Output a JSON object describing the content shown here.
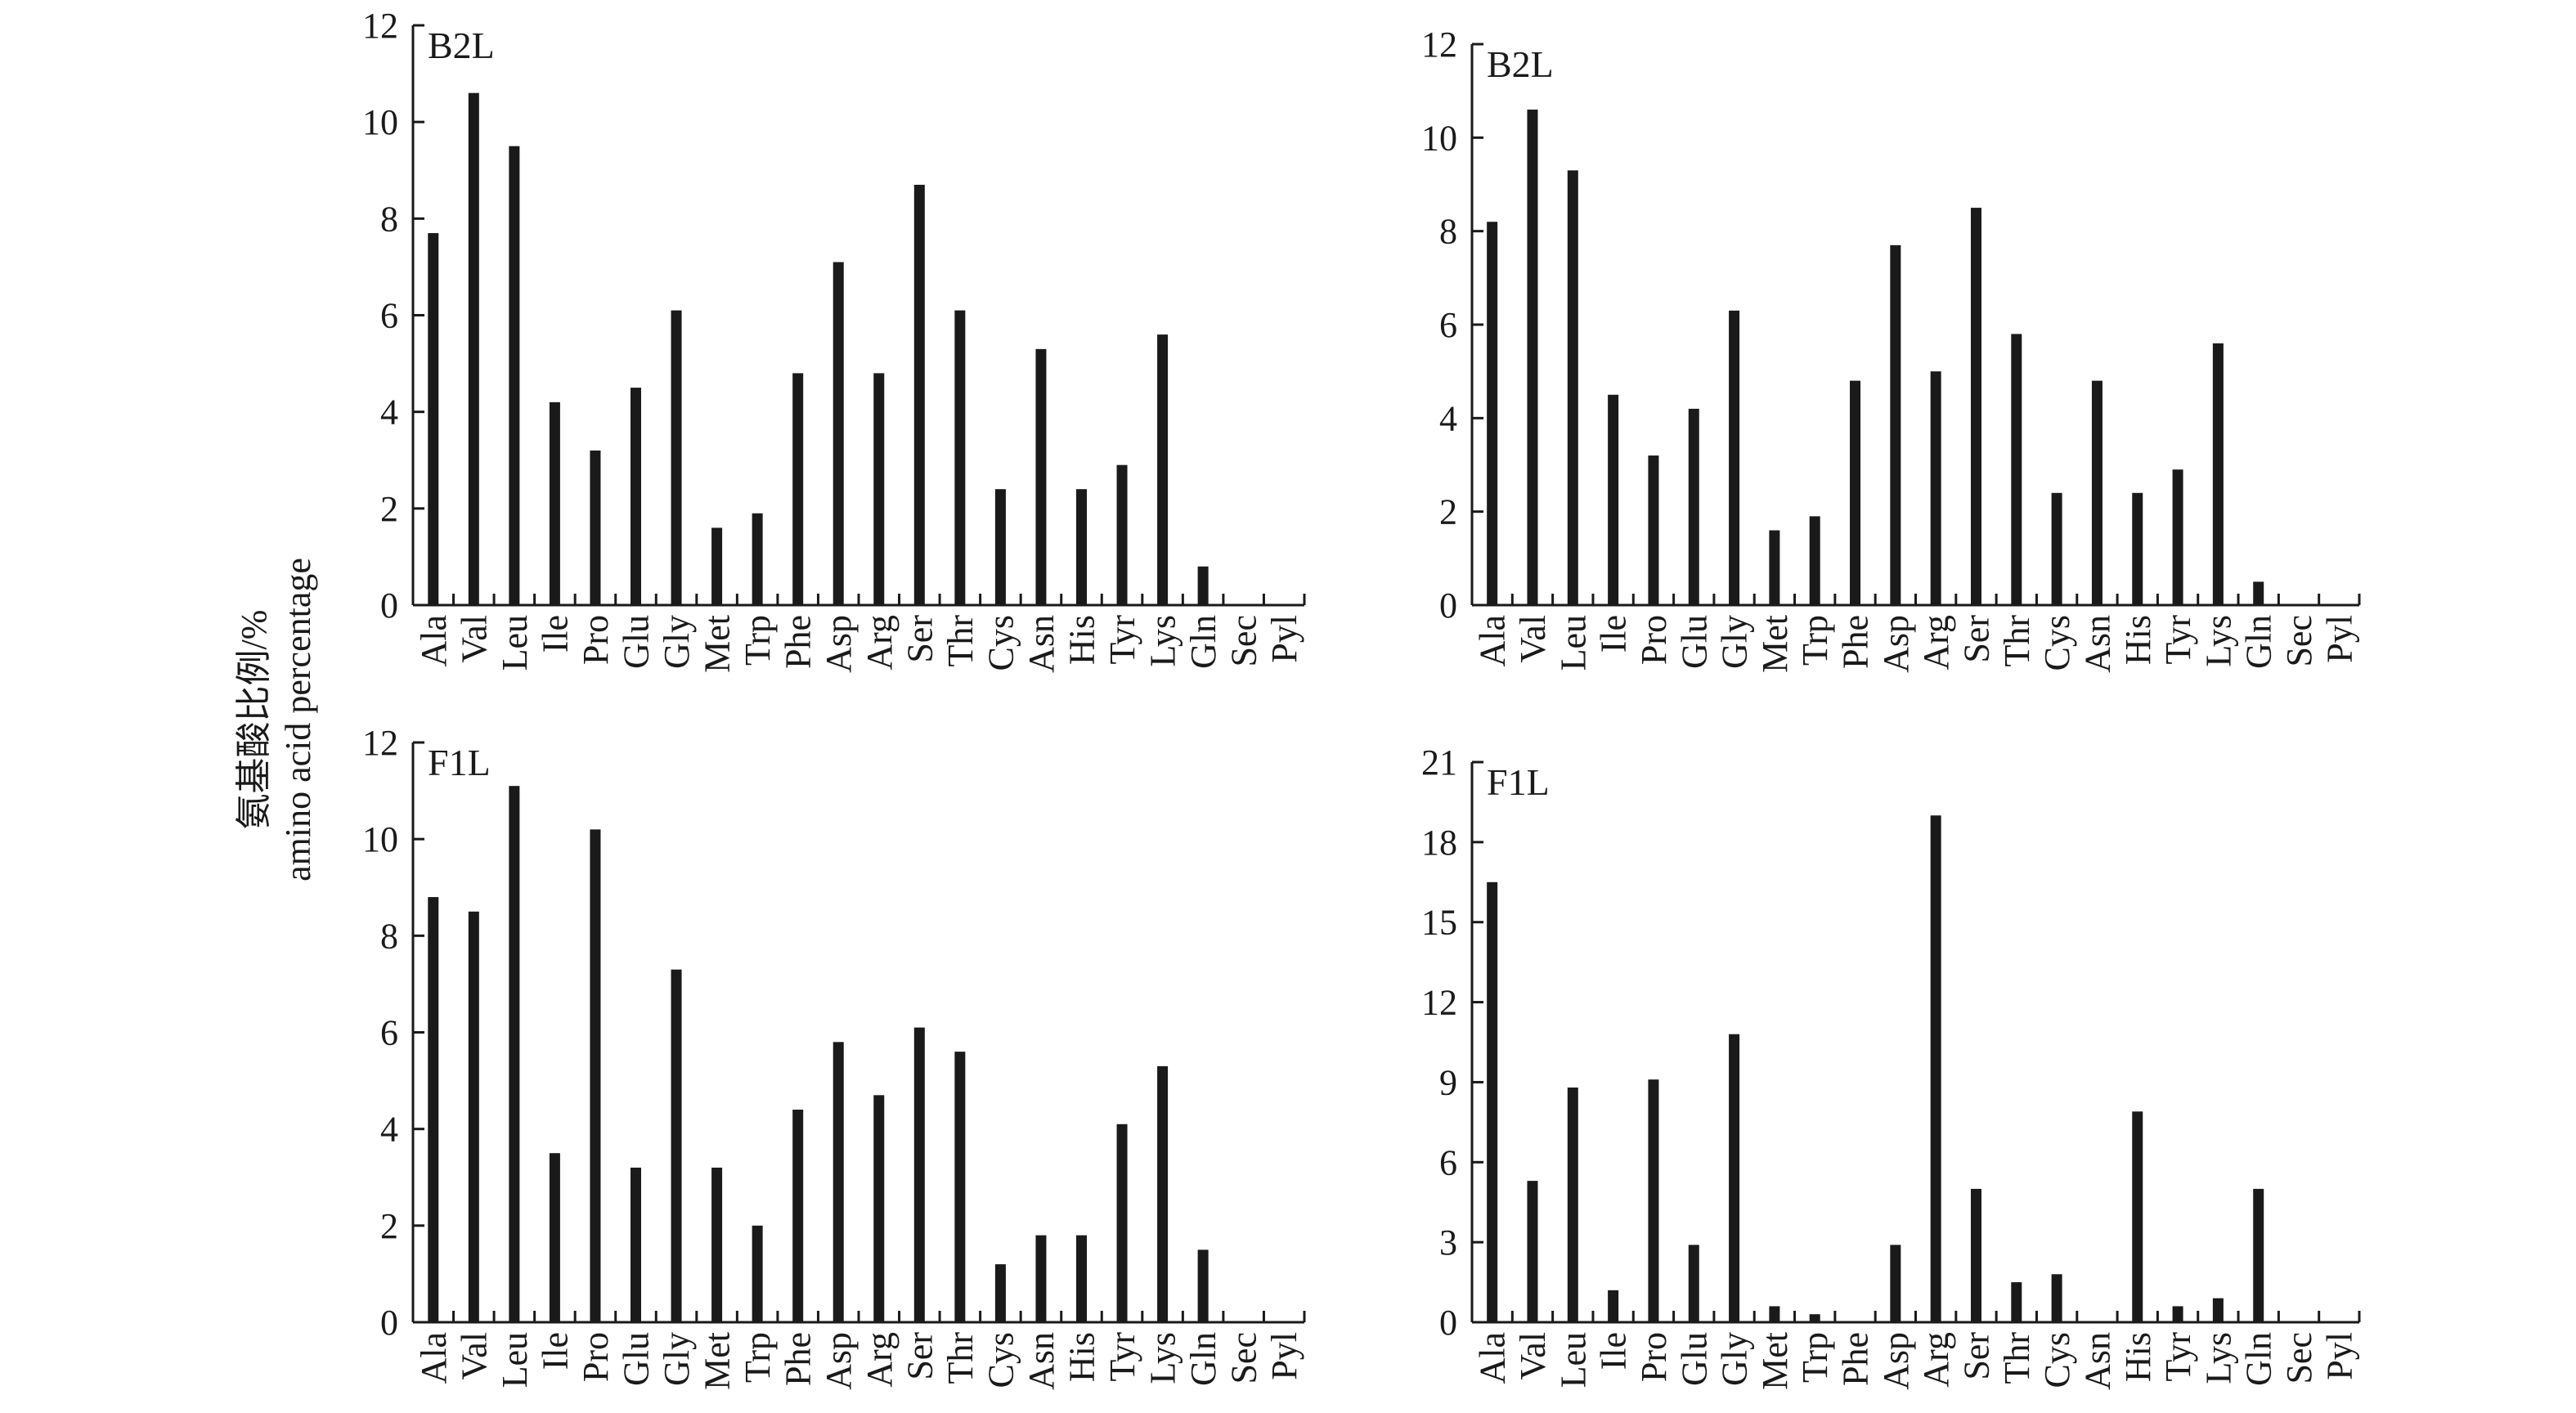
{
  "ylabel_line1": "氨基酸比例/%",
  "ylabel_line2": "amino acid percentage",
  "chart_data": [
    {
      "type": "bar",
      "panel_label": "B2L",
      "position": "top-left",
      "categories": [
        "Ala",
        "Val",
        "Leu",
        "Ile",
        "Pro",
        "Glu",
        "Gly",
        "Met",
        "Trp",
        "Phe",
        "Asp",
        "Arg",
        "Ser",
        "Thr",
        "Cys",
        "Asn",
        "His",
        "Tyr",
        "Lys",
        "Gln",
        "Sec",
        "Pyl"
      ],
      "values": [
        7.7,
        10.6,
        9.5,
        4.2,
        3.2,
        4.5,
        6.1,
        1.6,
        1.9,
        4.8,
        7.1,
        4.8,
        8.7,
        6.1,
        2.4,
        5.3,
        2.4,
        2.9,
        5.6,
        0.8,
        0,
        0
      ],
      "ylim": [
        0,
        12
      ],
      "yticks": [
        "0",
        "2",
        "4",
        "6",
        "8",
        "10",
        "12"
      ]
    },
    {
      "type": "bar",
      "panel_label": "B2L",
      "position": "top-right",
      "categories": [
        "Ala",
        "Val",
        "Leu",
        "Ile",
        "Pro",
        "Glu",
        "Gly",
        "Met",
        "Trp",
        "Phe",
        "Asp",
        "Arg",
        "Ser",
        "Thr",
        "Cys",
        "Asn",
        "His",
        "Tyr",
        "Lys",
        "Gln",
        "Sec",
        "Pyl"
      ],
      "values": [
        8.2,
        10.6,
        9.3,
        4.5,
        3.2,
        4.2,
        6.3,
        1.6,
        1.9,
        4.8,
        7.7,
        5.0,
        8.5,
        5.8,
        2.4,
        4.8,
        2.4,
        2.9,
        5.6,
        0.5,
        0,
        0
      ],
      "ylim": [
        0,
        12
      ],
      "yticks": [
        "0",
        "2",
        "4",
        "6",
        "8",
        "10",
        "12"
      ]
    },
    {
      "type": "bar",
      "panel_label": "F1L",
      "position": "bottom-left",
      "categories": [
        "Ala",
        "Val",
        "Leu",
        "Ile",
        "Pro",
        "Glu",
        "Gly",
        "Met",
        "Trp",
        "Phe",
        "Asp",
        "Arg",
        "Ser",
        "Thr",
        "Cys",
        "Asn",
        "His",
        "Tyr",
        "Lys",
        "Gln",
        "Sec",
        "Pyl"
      ],
      "values": [
        8.8,
        8.5,
        11.1,
        3.5,
        10.2,
        3.2,
        7.3,
        3.2,
        2.0,
        4.4,
        5.8,
        4.7,
        6.1,
        5.6,
        1.2,
        1.8,
        1.8,
        4.1,
        5.3,
        1.5,
        0,
        0
      ],
      "ylim": [
        0,
        12
      ],
      "yticks": [
        "0",
        "2",
        "4",
        "6",
        "8",
        "10",
        "12"
      ]
    },
    {
      "type": "bar",
      "panel_label": "F1L",
      "position": "bottom-right",
      "categories": [
        "Ala",
        "Val",
        "Leu",
        "Ile",
        "Pro",
        "Glu",
        "Gly",
        "Met",
        "Trp",
        "Phe",
        "Asp",
        "Arg",
        "Ser",
        "Thr",
        "Cys",
        "Asn",
        "His",
        "Tyr",
        "Lys",
        "Gln",
        "Sec",
        "Pyl"
      ],
      "values": [
        16.5,
        5.3,
        8.8,
        1.2,
        9.1,
        2.9,
        10.8,
        0.6,
        0.3,
        0,
        2.9,
        19.0,
        5.0,
        1.5,
        1.8,
        0,
        7.9,
        0.6,
        0.9,
        5.0,
        0,
        0
      ],
      "ylim": [
        0,
        21
      ],
      "yticks": [
        "0",
        "3",
        "6",
        "9",
        "12",
        "15",
        "18",
        "21"
      ]
    }
  ]
}
